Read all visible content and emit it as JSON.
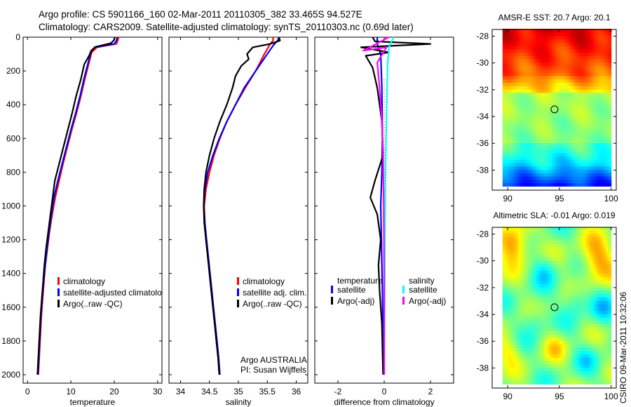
{
  "header": {
    "line1": "Argo profile: CS 5901166_160 02-Mar-2011 20110305_382 33.465S 94.527E",
    "line2": "Climatology: CARS2009. Satellite-adjusted climatology: synTS_20110303.nc (0.69d later)"
  },
  "colors": {
    "red": "#ff0000",
    "blue": "#0000ff",
    "black": "#000000",
    "cyan": "#00ffff",
    "magenta": "#ff00ff"
  },
  "chart_data": [
    {
      "type": "line",
      "id": "temperature-profile",
      "xlabel": "temperature",
      "xlim": [
        -1,
        31
      ],
      "ylim": [
        0,
        2050
      ],
      "y_inverted": true,
      "xticks": [
        0,
        10,
        20,
        30
      ],
      "yticks": [
        0,
        200,
        400,
        600,
        800,
        1000,
        1200,
        1400,
        1600,
        1800,
        2000
      ],
      "legend": [
        "climatology",
        "satellite-adjusted climatolo",
        "Argo(..raw -QC)"
      ],
      "legend_placement": "lower-right",
      "series": [
        {
          "name": "climatology",
          "color": "red",
          "points": [
            [
              21,
              0
            ],
            [
              20.8,
              20
            ],
            [
              20.5,
              40
            ],
            [
              16,
              60
            ],
            [
              14.8,
              90
            ],
            [
              14.2,
              150
            ],
            [
              13.2,
              250
            ],
            [
              12.3,
              350
            ],
            [
              11.3,
              450
            ],
            [
              10.2,
              550
            ],
            [
              9.2,
              650
            ],
            [
              8.2,
              750
            ],
            [
              7.3,
              850
            ],
            [
              6.4,
              950
            ],
            [
              5.7,
              1050
            ],
            [
              5.1,
              1150
            ],
            [
              4.6,
              1250
            ],
            [
              4.1,
              1350
            ],
            [
              3.8,
              1450
            ],
            [
              3.5,
              1550
            ],
            [
              3.2,
              1650
            ],
            [
              3,
              1750
            ],
            [
              2.8,
              1850
            ],
            [
              2.6,
              1950
            ],
            [
              2.5,
              2000
            ]
          ]
        },
        {
          "name": "satellite-adjusted climatolo",
          "color": "blue",
          "points": [
            [
              20.7,
              0
            ],
            [
              20.5,
              20
            ],
            [
              20,
              40
            ],
            [
              15.5,
              60
            ],
            [
              14.6,
              90
            ],
            [
              14,
              150
            ],
            [
              13,
              250
            ],
            [
              12.1,
              350
            ],
            [
              11.1,
              450
            ],
            [
              10,
              550
            ],
            [
              9,
              650
            ],
            [
              8,
              750
            ],
            [
              7,
              850
            ],
            [
              6.1,
              950
            ],
            [
              5.5,
              1050
            ],
            [
              5,
              1150
            ],
            [
              4.5,
              1250
            ],
            [
              4.1,
              1350
            ],
            [
              3.7,
              1450
            ],
            [
              3.4,
              1550
            ],
            [
              3.1,
              1650
            ],
            [
              2.9,
              1750
            ],
            [
              2.7,
              1850
            ],
            [
              2.5,
              1950
            ],
            [
              2.4,
              2000
            ]
          ]
        },
        {
          "name": "Argo(..raw -QC)",
          "color": "black",
          "points": [
            [
              20.1,
              0
            ],
            [
              20,
              15
            ],
            [
              19.3,
              35
            ],
            [
              15.6,
              58
            ],
            [
              14.7,
              80
            ],
            [
              14.2,
              110
            ],
            [
              13.1,
              160
            ],
            [
              12.3,
              250
            ],
            [
              11.2,
              350
            ],
            [
              10.3,
              450
            ],
            [
              9.3,
              550
            ],
            [
              8.3,
              650
            ],
            [
              7.3,
              750
            ],
            [
              6.3,
              850
            ],
            [
              5.8,
              950
            ],
            [
              5.3,
              1050
            ],
            [
              4.8,
              1150
            ],
            [
              4.3,
              1250
            ],
            [
              3.9,
              1350
            ],
            [
              3.6,
              1450
            ],
            [
              3.3,
              1550
            ],
            [
              3,
              1650
            ],
            [
              2.8,
              1750
            ],
            [
              2.6,
              1850
            ],
            [
              2.4,
              1950
            ],
            [
              2.3,
              2000
            ]
          ]
        }
      ]
    },
    {
      "type": "line",
      "id": "salinity-profile",
      "xlabel": "salinity",
      "xlim": [
        33.8,
        36.2
      ],
      "ylim": [
        0,
        2050
      ],
      "y_inverted": true,
      "xticks": [
        34,
        34.5,
        35,
        35.5,
        36
      ],
      "legend": [
        "climatology",
        "satellite adj. clim.",
        "Argo(..raw -QC)"
      ],
      "legend_placement": "lower-right",
      "annotation": [
        "Argo AUSTRALIA",
        "PI: Susan Wijffels"
      ],
      "series": [
        {
          "name": "climatology",
          "color": "red",
          "points": [
            [
              35.6,
              0
            ],
            [
              35.6,
              20
            ],
            [
              35.55,
              40
            ],
            [
              35.45,
              100
            ],
            [
              35.3,
              200
            ],
            [
              35.12,
              300
            ],
            [
              34.95,
              400
            ],
            [
              34.8,
              500
            ],
            [
              34.68,
              600
            ],
            [
              34.58,
              700
            ],
            [
              34.5,
              800
            ],
            [
              34.44,
              900
            ],
            [
              34.41,
              1000
            ],
            [
              34.42,
              1100
            ],
            [
              34.44,
              1200
            ],
            [
              34.47,
              1300
            ],
            [
              34.5,
              1400
            ],
            [
              34.53,
              1500
            ],
            [
              34.56,
              1600
            ],
            [
              34.59,
              1700
            ],
            [
              34.62,
              1800
            ],
            [
              34.65,
              1900
            ],
            [
              34.67,
              2000
            ]
          ]
        },
        {
          "name": "satellite adj. clim.",
          "color": "blue",
          "points": [
            [
              35.7,
              0
            ],
            [
              35.68,
              20
            ],
            [
              35.6,
              50
            ],
            [
              35.5,
              100
            ],
            [
              35.3,
              200
            ],
            [
              35.1,
              300
            ],
            [
              34.95,
              400
            ],
            [
              34.8,
              500
            ],
            [
              34.67,
              600
            ],
            [
              34.56,
              700
            ],
            [
              34.47,
              800
            ],
            [
              34.42,
              900
            ],
            [
              34.4,
              1000
            ],
            [
              34.42,
              1100
            ],
            [
              34.45,
              1200
            ],
            [
              34.48,
              1300
            ],
            [
              34.51,
              1400
            ],
            [
              34.54,
              1500
            ],
            [
              34.57,
              1600
            ],
            [
              34.6,
              1700
            ],
            [
              34.63,
              1800
            ],
            [
              34.66,
              1900
            ],
            [
              34.68,
              2000
            ]
          ]
        },
        {
          "name": "Argo(..raw -QC)",
          "color": "black",
          "points": [
            [
              35.7,
              0
            ],
            [
              35.72,
              20
            ],
            [
              35.55,
              40
            ],
            [
              35.25,
              60
            ],
            [
              35.15,
              100
            ],
            [
              35.18,
              130
            ],
            [
              35.05,
              170
            ],
            [
              34.95,
              230
            ],
            [
              34.9,
              300
            ],
            [
              34.8,
              400
            ],
            [
              34.68,
              500
            ],
            [
              34.58,
              600
            ],
            [
              34.5,
              700
            ],
            [
              34.44,
              800
            ],
            [
              34.41,
              900
            ],
            [
              34.4,
              1000
            ],
            [
              34.41,
              1100
            ],
            [
              34.44,
              1200
            ],
            [
              34.47,
              1300
            ],
            [
              34.5,
              1400
            ],
            [
              34.53,
              1500
            ],
            [
              34.56,
              1600
            ],
            [
              34.59,
              1700
            ],
            [
              34.62,
              1800
            ],
            [
              34.65,
              1900
            ],
            [
              34.67,
              2000
            ]
          ]
        }
      ]
    },
    {
      "type": "line",
      "id": "difference-profile",
      "xlabel": "difference from climatology",
      "xlim": [
        -3,
        3
      ],
      "ylim": [
        0,
        2050
      ],
      "y_inverted": true,
      "xticks": [
        -2,
        0,
        2
      ],
      "legend_groups": [
        {
          "title": "temperature",
          "entries": [
            "satellite",
            "Argo(-adj)"
          ]
        },
        {
          "title": "salinity",
          "entries": [
            "satellite",
            "Argo(-adj)"
          ]
        }
      ],
      "legend_placement": "lower",
      "series": [
        {
          "name": "temperature satellite",
          "color": "blue",
          "points": [
            [
              -0.3,
              0
            ],
            [
              -0.3,
              40
            ],
            [
              -0.15,
              100
            ],
            [
              -0.1,
              300
            ],
            [
              -0.08,
              600
            ],
            [
              -0.1,
              800
            ],
            [
              -0.15,
              1000
            ],
            [
              -0.12,
              1200
            ],
            [
              -0.08,
              1500
            ],
            [
              -0.05,
              1800
            ],
            [
              -0.03,
              2000
            ]
          ]
        },
        {
          "name": "temperature Argo(-adj)",
          "color": "black",
          "points": [
            [
              -0.5,
              0
            ],
            [
              -0.4,
              25
            ],
            [
              2,
              40
            ],
            [
              -1,
              60
            ],
            [
              0.2,
              90
            ],
            [
              -0.8,
              110
            ],
            [
              -0.5,
              180
            ],
            [
              -0.3,
              300
            ],
            [
              -0.1,
              500
            ],
            [
              -0.05,
              700
            ],
            [
              -0.4,
              850
            ],
            [
              -0.6,
              950
            ],
            [
              -0.3,
              1050
            ],
            [
              -0.15,
              1200
            ],
            [
              -0.25,
              1350
            ],
            [
              -0.2,
              1500
            ],
            [
              -0.1,
              1700
            ],
            [
              -0.05,
              2000
            ]
          ]
        },
        {
          "name": "salinity satellite",
          "color": "cyan",
          "points": [
            [
              0.4,
              0
            ],
            [
              0.3,
              30
            ],
            [
              0.2,
              60
            ],
            [
              0.15,
              150
            ],
            [
              0.12,
              300
            ],
            [
              0.08,
              600
            ],
            [
              0.05,
              900
            ],
            [
              0.03,
              1200
            ],
            [
              0.02,
              1500
            ],
            [
              0.01,
              2000
            ]
          ]
        },
        {
          "name": "salinity Argo(-adj)",
          "color": "magenta",
          "points": [
            [
              0.2,
              0
            ],
            [
              -0.9,
              80
            ],
            [
              0.1,
              60
            ],
            [
              -0.3,
              150
            ],
            [
              -0.2,
              300
            ],
            [
              -0.1,
              500
            ],
            [
              -0.05,
              700
            ],
            [
              -0.02,
              1000
            ],
            [
              0,
              1500
            ],
            [
              0,
              2000
            ]
          ]
        }
      ]
    },
    {
      "type": "heatmap",
      "id": "sst-map",
      "title": "AMSR-E SST: 20.7 Argo: 20.1",
      "xlim": [
        88.5,
        100.5
      ],
      "ylim": [
        -39.5,
        -27.5
      ],
      "xticks": [
        90,
        95,
        100
      ],
      "yticks": [
        -28,
        -30,
        -32,
        -34,
        -36,
        -38
      ],
      "argo_position": [
        94.527,
        -33.465
      ]
    },
    {
      "type": "heatmap",
      "id": "sla-map",
      "title": "Altimetric SLA: -0.01 Argo: 0.019",
      "xlim": [
        88.5,
        100.5
      ],
      "ylim": [
        -39.5,
        -27.5
      ],
      "xticks": [
        90,
        95,
        100
      ],
      "yticks": [
        -28,
        -30,
        -32,
        -34,
        -36,
        -38
      ],
      "argo_position": [
        94.527,
        -33.465
      ]
    }
  ],
  "footer": {
    "stamp": "CSIRO 09-Mar-2011 10:32:06"
  }
}
